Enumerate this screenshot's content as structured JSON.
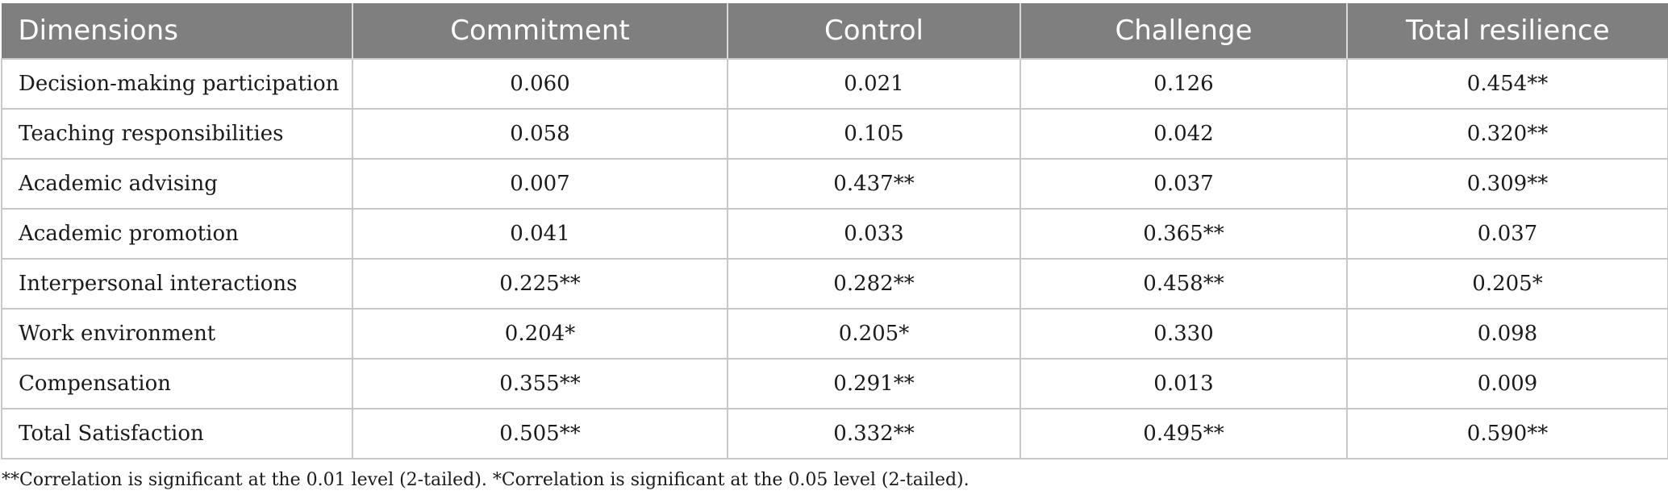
{
  "table": {
    "headers": [
      "Dimensions",
      "Commitment",
      "Control",
      "Challenge",
      "Total resilience"
    ],
    "rows": [
      [
        "Decision-making participation",
        "0.060",
        "0.021",
        "0.126",
        "0.454**"
      ],
      [
        "Teaching responsibilities",
        "0.058",
        "0.105",
        "0.042",
        "0.320**"
      ],
      [
        "Academic advising",
        "0.007",
        "0.437**",
        "0.037",
        "0.309**"
      ],
      [
        "Academic promotion",
        "0.041",
        "0.033",
        "0.365**",
        "0.037"
      ],
      [
        "Interpersonal interactions",
        "0.225**",
        "0.282**",
        "0.458**",
        "0.205*"
      ],
      [
        "Work environment",
        "0.204*",
        "0.205*",
        "0.330",
        "0.098"
      ],
      [
        "Compensation",
        "0.355**",
        "0.291**",
        "0.013",
        "0.009"
      ],
      [
        "Total Satisfaction",
        "0.505**",
        "0.332**",
        "0.495**",
        "0.590**"
      ]
    ]
  },
  "footnote": "**Correlation is significant at the 0.01 level (2-tailed). *Correlation is significant at the 0.05 level (2-tailed).",
  "colors": {
    "header_bg": "#7f7f7f",
    "header_text": "#ffffff",
    "grid": "#c8c8c8"
  }
}
